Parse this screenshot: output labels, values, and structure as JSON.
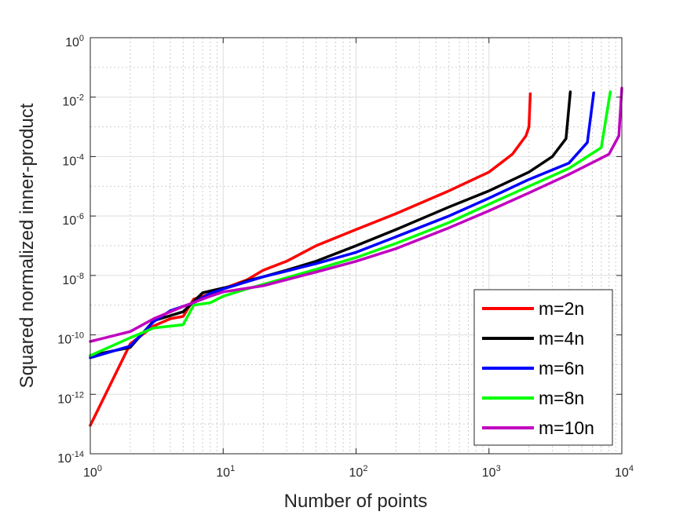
{
  "chart_data": {
    "type": "line",
    "title": "",
    "xlabel": "Number of points",
    "ylabel": "Squared normalized inner-product",
    "xscale": "log",
    "yscale": "log",
    "xlim": [
      1,
      10000
    ],
    "ylim": [
      1e-14,
      1
    ],
    "x_ticks": [
      {
        "base": "10",
        "exp": "0",
        "value": 1
      },
      {
        "base": "10",
        "exp": "1",
        "value": 10
      },
      {
        "base": "10",
        "exp": "2",
        "value": 100
      },
      {
        "base": "10",
        "exp": "3",
        "value": 1000
      },
      {
        "base": "10",
        "exp": "4",
        "value": 10000
      }
    ],
    "y_ticks": [
      {
        "base": "10",
        "exp": "-14",
        "value": 1e-14
      },
      {
        "base": "10",
        "exp": "-12",
        "value": 1e-12
      },
      {
        "base": "10",
        "exp": "-10",
        "value": 1e-10
      },
      {
        "base": "10",
        "exp": "-8",
        "value": 1e-08
      },
      {
        "base": "10",
        "exp": "-6",
        "value": 1e-06
      },
      {
        "base": "10",
        "exp": "-4",
        "value": 0.0001
      },
      {
        "base": "10",
        "exp": "-2",
        "value": 0.01
      },
      {
        "base": "10",
        "exp": "0",
        "value": 1
      }
    ],
    "grid": true,
    "minor_grid": true,
    "legend_position": "bottom-right",
    "series": [
      {
        "name": "m=2n",
        "color": "#ff0000",
        "points": [
          [
            1,
            9e-14
          ],
          [
            2,
            5e-11
          ],
          [
            3,
            2e-10
          ],
          [
            4,
            3.5e-10
          ],
          [
            5,
            4.2e-10
          ],
          [
            6,
            1.6e-09
          ],
          [
            8,
            2.4e-09
          ],
          [
            10,
            3.6e-09
          ],
          [
            15,
            7e-09
          ],
          [
            20,
            1.5e-08
          ],
          [
            30,
            3e-08
          ],
          [
            50,
            1e-07
          ],
          [
            100,
            3.5e-07
          ],
          [
            200,
            1.2e-06
          ],
          [
            500,
            7e-06
          ],
          [
            1000,
            3e-05
          ],
          [
            1500,
            0.00012
          ],
          [
            1900,
            0.0005
          ],
          [
            2000,
            0.001
          ],
          [
            2048,
            0.013
          ]
        ]
      },
      {
        "name": "m=4n",
        "color": "#000000",
        "points": [
          [
            1,
            2e-11
          ],
          [
            2,
            3.8e-11
          ],
          [
            3,
            3e-10
          ],
          [
            5,
            6e-10
          ],
          [
            7,
            2.6e-09
          ],
          [
            10,
            3.8e-09
          ],
          [
            12,
            4.5e-09
          ],
          [
            15,
            6.6e-09
          ],
          [
            20,
            9e-09
          ],
          [
            30,
            1.5e-08
          ],
          [
            50,
            3e-08
          ],
          [
            100,
            1e-07
          ],
          [
            200,
            3.5e-07
          ],
          [
            500,
            2e-06
          ],
          [
            1000,
            7e-06
          ],
          [
            2000,
            3e-05
          ],
          [
            3000,
            0.0001
          ],
          [
            3800,
            0.0004
          ],
          [
            4096,
            0.015
          ]
        ]
      },
      {
        "name": "m=6n",
        "color": "#0000ff",
        "points": [
          [
            1,
            1.7e-11
          ],
          [
            2,
            4.2e-11
          ],
          [
            3,
            2.8e-10
          ],
          [
            4,
            6.5e-10
          ],
          [
            6,
            1.2e-09
          ],
          [
            8,
            2.5e-09
          ],
          [
            10,
            3.5e-09
          ],
          [
            20,
            9e-09
          ],
          [
            30,
            1.4e-08
          ],
          [
            50,
            2.5e-08
          ],
          [
            100,
            6e-08
          ],
          [
            200,
            2e-07
          ],
          [
            500,
            1e-06
          ],
          [
            1000,
            4e-06
          ],
          [
            2000,
            1.7e-05
          ],
          [
            4000,
            6e-05
          ],
          [
            5500,
            0.0003
          ],
          [
            6144,
            0.014
          ]
        ]
      },
      {
        "name": "m=8n",
        "color": "#00ff00",
        "points": [
          [
            1,
            2e-11
          ],
          [
            2,
            8e-11
          ],
          [
            3,
            1.7e-10
          ],
          [
            5,
            2.2e-10
          ],
          [
            6,
            1e-09
          ],
          [
            8,
            1.2e-09
          ],
          [
            10,
            2e-09
          ],
          [
            15,
            3.5e-09
          ],
          [
            20,
            5e-09
          ],
          [
            50,
            1.6e-08
          ],
          [
            100,
            4e-08
          ],
          [
            200,
            1.2e-07
          ],
          [
            500,
            6e-07
          ],
          [
            1000,
            2.5e-06
          ],
          [
            2000,
            1e-05
          ],
          [
            4000,
            4e-05
          ],
          [
            7000,
            0.0002
          ],
          [
            8192,
            0.015
          ]
        ]
      },
      {
        "name": "m=10n",
        "color": "#c000c0",
        "points": [
          [
            1,
            6e-11
          ],
          [
            2,
            1.3e-10
          ],
          [
            3,
            3.5e-10
          ],
          [
            5,
            9e-10
          ],
          [
            8,
            2e-09
          ],
          [
            10,
            2.8e-09
          ],
          [
            20,
            4.5e-09
          ],
          [
            50,
            1.3e-08
          ],
          [
            100,
            3e-08
          ],
          [
            200,
            8e-08
          ],
          [
            500,
            4e-07
          ],
          [
            1000,
            1.5e-06
          ],
          [
            2000,
            6e-06
          ],
          [
            4000,
            2.5e-05
          ],
          [
            8000,
            0.00012
          ],
          [
            9500,
            0.0005
          ],
          [
            10000,
            0.02
          ]
        ]
      }
    ]
  }
}
